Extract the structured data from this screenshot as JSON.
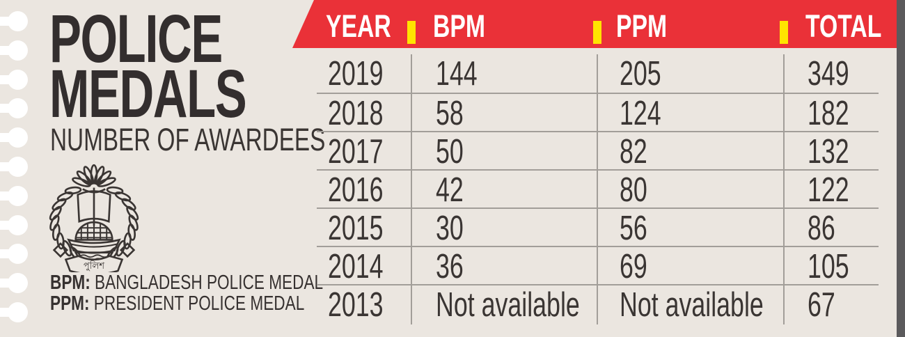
{
  "panel": {
    "title_line1": "POLICE",
    "title_line2": "MEDALS",
    "subtitle": "NUMBER OF AWARDEES",
    "logo": {
      "label": "bangladesh-police-emblem",
      "banner_text": "পুলিশ"
    },
    "footnotes": [
      {
        "abbr": "BPM:",
        "text": "BANGLADESH POLICE MEDAL"
      },
      {
        "abbr": "PPM:",
        "text": "PRESIDENT POLICE MEDAL"
      }
    ]
  },
  "table": {
    "headers": [
      "YEAR",
      "BPM",
      "PPM",
      "TOTAL"
    ],
    "rows": [
      [
        "2019",
        "144",
        "205",
        "349"
      ],
      [
        "2018",
        "58",
        "124",
        "182"
      ],
      [
        "2017",
        "50",
        "82",
        "132"
      ],
      [
        "2016",
        "42",
        "80",
        "122"
      ],
      [
        "2015",
        "30",
        "56",
        "86"
      ],
      [
        "2014",
        "36",
        "69",
        "105"
      ],
      [
        "2013",
        "Not available",
        "Not available",
        "67"
      ]
    ]
  },
  "colors": {
    "background": "#ebe6e0",
    "header_red": "#ea3138",
    "divider_yellow": "#ffe400",
    "text_dark": "#3a3533",
    "grid_line": "#a29e99",
    "edge_strip": "#5b5a5c",
    "pin_white": "#ffffff",
    "header_text": "#ffffff"
  },
  "chart_data": {
    "type": "table",
    "title": "POLICE MEDALS",
    "subtitle": "NUMBER OF AWARDEES",
    "columns": [
      "YEAR",
      "BPM",
      "PPM",
      "TOTAL"
    ],
    "rows": [
      {
        "year": 2019,
        "bpm": 144,
        "ppm": 205,
        "total": 349
      },
      {
        "year": 2018,
        "bpm": 58,
        "ppm": 124,
        "total": 182
      },
      {
        "year": 2017,
        "bpm": 50,
        "ppm": 82,
        "total": 132
      },
      {
        "year": 2016,
        "bpm": 42,
        "ppm": 80,
        "total": 122
      },
      {
        "year": 2015,
        "bpm": 30,
        "ppm": 56,
        "total": 86
      },
      {
        "year": 2014,
        "bpm": 36,
        "ppm": 69,
        "total": 105
      },
      {
        "year": 2013,
        "bpm": "Not available",
        "ppm": "Not available",
        "total": 67
      }
    ],
    "notes": [
      "BPM: BANGLADESH POLICE MEDAL",
      "PPM: PRESIDENT POLICE MEDAL"
    ]
  }
}
